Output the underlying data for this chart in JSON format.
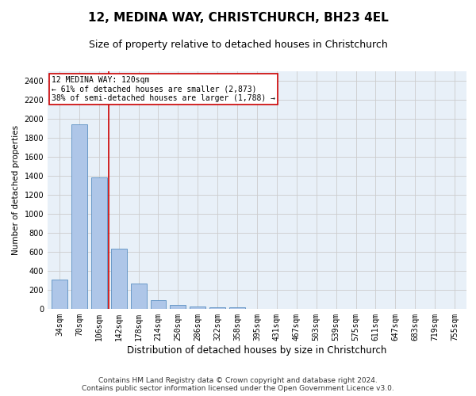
{
  "title1": "12, MEDINA WAY, CHRISTCHURCH, BH23 4EL",
  "title2": "Size of property relative to detached houses in Christchurch",
  "xlabel": "Distribution of detached houses by size in Christchurch",
  "ylabel": "Number of detached properties",
  "categories": [
    "34sqm",
    "70sqm",
    "106sqm",
    "142sqm",
    "178sqm",
    "214sqm",
    "250sqm",
    "286sqm",
    "322sqm",
    "358sqm",
    "395sqm",
    "431sqm",
    "467sqm",
    "503sqm",
    "539sqm",
    "575sqm",
    "611sqm",
    "647sqm",
    "683sqm",
    "719sqm",
    "755sqm"
  ],
  "values": [
    310,
    1940,
    1380,
    630,
    270,
    90,
    40,
    25,
    20,
    15,
    0,
    0,
    0,
    0,
    0,
    0,
    0,
    0,
    0,
    0,
    0
  ],
  "bar_color": "#aec6e8",
  "bar_edge_color": "#5a8fc2",
  "bar_width": 0.8,
  "red_line_x": 2.5,
  "annotation_title": "12 MEDINA WAY: 120sqm",
  "annotation_line1": "← 61% of detached houses are smaller (2,873)",
  "annotation_line2": "38% of semi-detached houses are larger (1,788) →",
  "annotation_box_color": "#ffffff",
  "annotation_border_color": "#cc0000",
  "red_line_color": "#cc0000",
  "ylim": [
    0,
    2500
  ],
  "yticks": [
    0,
    200,
    400,
    600,
    800,
    1000,
    1200,
    1400,
    1600,
    1800,
    2000,
    2200,
    2400
  ],
  "grid_color": "#cccccc",
  "bg_color": "#e8f0f8",
  "footer1": "Contains HM Land Registry data © Crown copyright and database right 2024.",
  "footer2": "Contains public sector information licensed under the Open Government Licence v3.0.",
  "title1_fontsize": 11,
  "title2_fontsize": 9,
  "xlabel_fontsize": 8.5,
  "ylabel_fontsize": 7.5,
  "tick_fontsize": 7,
  "annotation_fontsize": 7,
  "footer_fontsize": 6.5
}
